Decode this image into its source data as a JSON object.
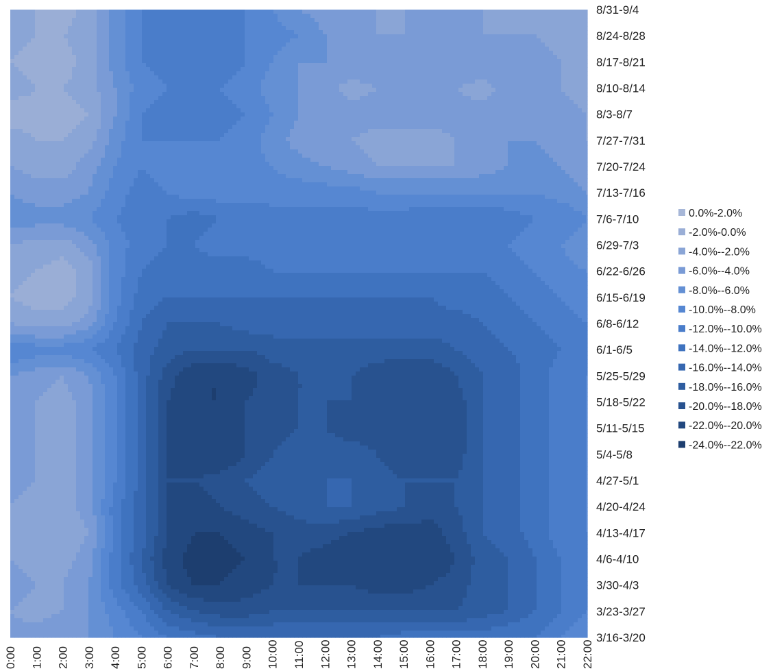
{
  "chart_data": {
    "type": "contour",
    "x_ticks": [
      "0:00",
      "1:00",
      "2:00",
      "3:00",
      "4:00",
      "5:00",
      "6:00",
      "7:00",
      "8:00",
      "9:00",
      "10:00",
      "11:00",
      "12:00",
      "13:00",
      "14:00",
      "15:00",
      "16:00",
      "17:00",
      "18:00",
      "19:00",
      "20:00",
      "21:00",
      "22:00"
    ],
    "y_ticks": [
      "3/16-3/20",
      "3/23-3/27",
      "3/30-4/3",
      "4/6-4/10",
      "4/13-4/17",
      "4/20-4/24",
      "4/27-5/1",
      "5/4-5/8",
      "5/11-5/15",
      "5/18-5/22",
      "5/25-5/29",
      "6/1-6/5",
      "6/8-6/12",
      "6/15-6/19",
      "6/22-6/26",
      "6/29-7/3",
      "7/6-7/10",
      "7/13-7/16",
      "7/20-7/24",
      "7/27-7/31",
      "8/3-8/7",
      "8/10-8/14",
      "8/17-8/21",
      "8/24-8/28",
      "8/31-9/4"
    ],
    "legend": [
      {
        "label": "0.0%-2.0%",
        "color": "#a7b7d8"
      },
      {
        "label": "-2.0%-0.0%",
        "color": "#9aaed6"
      },
      {
        "label": "-4.0%--2.0%",
        "color": "#8aa5d6"
      },
      {
        "label": "-6.0%--4.0%",
        "color": "#7a9bd6"
      },
      {
        "label": "-8.0%--6.0%",
        "color": "#6490d4"
      },
      {
        "label": "-10.0%--8.0%",
        "color": "#5687d2"
      },
      {
        "label": "-12.0%--10.0%",
        "color": "#4a7dca"
      },
      {
        "label": "-14.0%--12.0%",
        "color": "#3f73bf"
      },
      {
        "label": "-16.0%--14.0%",
        "color": "#3667b0"
      },
      {
        "label": "-18.0%--16.0%",
        "color": "#2e5da0"
      },
      {
        "label": "-20.0%--18.0%",
        "color": "#28528f"
      },
      {
        "label": "-22.0%--20.0%",
        "color": "#22487f"
      },
      {
        "label": "-24.0%--22.0%",
        "color": "#1d3e6f"
      }
    ],
    "legend_position": "right",
    "z": [
      [
        -5,
        -5,
        -6,
        -6,
        -8,
        -10,
        -12,
        -13,
        -14,
        -14,
        -14,
        -14,
        -14,
        -14,
        -14,
        -13,
        -13,
        -13,
        -13,
        -12,
        -12,
        -10,
        -8
      ],
      [
        -4,
        -3,
        -4,
        -6,
        -9,
        -12,
        -16,
        -18,
        -19,
        -19,
        -18,
        -18,
        -18,
        -18,
        -18,
        -18,
        -18,
        -18,
        -17,
        -16,
        -14,
        -12,
        -10
      ],
      [
        -5,
        -4,
        -4,
        -6,
        -11,
        -15,
        -20,
        -22,
        -22,
        -21,
        -20,
        -20,
        -20,
        -20,
        -21,
        -21,
        -20,
        -19,
        -17,
        -16,
        -14,
        -12,
        -11
      ],
      [
        -4,
        -3,
        -3,
        -5,
        -11,
        -16,
        -21,
        -23,
        -23,
        -22,
        -20,
        -20,
        -21,
        -22,
        -22,
        -22,
        -22,
        -20,
        -17,
        -16,
        -14,
        -12,
        -11
      ],
      [
        -4,
        -2,
        -2,
        -4,
        -11,
        -15,
        -20,
        -22,
        -22,
        -21,
        -20,
        -19,
        -19,
        -20,
        -21,
        -21,
        -21,
        -19,
        -16,
        -15,
        -13,
        -11,
        -10
      ],
      [
        -4,
        -3,
        -3,
        -5,
        -11,
        -15,
        -20,
        -21,
        -20,
        -19,
        -18,
        -17,
        -16,
        -16,
        -17,
        -18,
        -19,
        -18,
        -16,
        -15,
        -13,
        -11,
        -10
      ],
      [
        -5,
        -4,
        -3,
        -5,
        -10,
        -15,
        -20,
        -20,
        -19,
        -18,
        -17,
        -17,
        -16,
        -16,
        -17,
        -18,
        -18,
        -18,
        -16,
        -15,
        -13,
        -11,
        -10
      ],
      [
        -6,
        -4,
        -3,
        -5,
        -10,
        -15,
        -20,
        -22,
        -22,
        -20,
        -18,
        -17,
        -17,
        -17,
        -18,
        -20,
        -20,
        -19,
        -16,
        -15,
        -13,
        -11,
        -10
      ],
      [
        -6,
        -4,
        -3,
        -5,
        -10,
        -15,
        -20,
        -22,
        -21,
        -20,
        -19,
        -18,
        -18,
        -19,
        -19,
        -20,
        -20,
        -19,
        -16,
        -15,
        -13,
        -11,
        -10
      ],
      [
        -6,
        -4,
        -3,
        -5,
        -10,
        -15,
        -20,
        -22,
        -22,
        -20,
        -19,
        -18,
        -18,
        -18,
        -19,
        -20,
        -20,
        -19,
        -16,
        -15,
        -13,
        -11,
        -10
      ],
      [
        -6,
        -5,
        -4,
        -6,
        -10,
        -15,
        -19,
        -22,
        -22,
        -21,
        -19,
        -18,
        -18,
        -18,
        -19,
        -20,
        -20,
        -18,
        -16,
        -15,
        -13,
        -11,
        -10
      ],
      [
        -10,
        -9,
        -9,
        -10,
        -12,
        -15,
        -17,
        -18,
        -18,
        -18,
        -17,
        -17,
        -17,
        -17,
        -17,
        -17,
        -17,
        -16,
        -15,
        -14,
        -13,
        -12,
        -11
      ],
      [
        -4,
        -3,
        -3,
        -5,
        -10,
        -14,
        -16,
        -16,
        -16,
        -15,
        -15,
        -15,
        -15,
        -15,
        -15,
        -15,
        -15,
        -15,
        -14,
        -13,
        -12,
        -11,
        -10
      ],
      [
        -2,
        -1,
        -1,
        -3,
        -9,
        -13,
        -14,
        -14,
        -14,
        -14,
        -14,
        -14,
        -14,
        -14,
        -14,
        -14,
        -14,
        -13,
        -13,
        -12,
        -11,
        -10,
        -9
      ],
      [
        -3,
        -2,
        -1,
        -3,
        -9,
        -12,
        -13,
        -13,
        -13,
        -13,
        -12,
        -12,
        -12,
        -12,
        -12,
        -12,
        -12,
        -12,
        -12,
        -11,
        -10,
        -9,
        -8
      ],
      [
        -4,
        -3,
        -3,
        -5,
        -9,
        -11,
        -12,
        -12,
        -11,
        -11,
        -11,
        -11,
        -11,
        -11,
        -12,
        -10,
        -10,
        -10,
        -10,
        -10,
        -9,
        -8,
        -6
      ],
      [
        -7,
        -7,
        -7,
        -8,
        -10,
        -11,
        -12,
        -13,
        -12,
        -12,
        -11,
        -11,
        -11,
        -11,
        -11,
        -11,
        -12,
        -12,
        -12,
        -11,
        -10,
        -10,
        -8
      ],
      [
        -6,
        -5,
        -5,
        -6,
        -9,
        -11,
        -10,
        -9,
        -9,
        -9,
        -9,
        -9,
        -9,
        -9,
        -8,
        -8,
        -8,
        -8,
        -8,
        -8,
        -8,
        -7,
        -6
      ],
      [
        -4,
        -3,
        -3,
        -5,
        -8,
        -10,
        -9,
        -9,
        -9,
        -9,
        -8,
        -7,
        -6,
        -5,
        -4,
        -4,
        -4,
        -4,
        -5,
        -6,
        -7,
        -6,
        -5
      ],
      [
        -3,
        -2,
        -2,
        -3,
        -7,
        -10,
        -10,
        -10,
        -10,
        -9,
        -7,
        -5,
        -4,
        -4,
        -3,
        -3,
        -3,
        -4,
        -5,
        -6,
        -6,
        -5,
        -4
      ],
      [
        -1,
        -1,
        -1,
        -2,
        -6,
        -10,
        -11,
        -11,
        -11,
        -10,
        -8,
        -6,
        -5,
        -5,
        -5,
        -5,
        -5,
        -5,
        -5,
        -6,
        -6,
        -5,
        -4
      ],
      [
        -3,
        -2,
        -2,
        -3,
        -6,
        -9,
        -10,
        -10,
        -10,
        -9,
        -7,
        -6,
        -5,
        -3,
        -4,
        -5,
        -5,
        -4,
        -3,
        -5,
        -5,
        -4,
        -3
      ],
      [
        -2,
        -1,
        -1,
        -3,
        -7,
        -10,
        -11,
        -11,
        -11,
        -10,
        -8,
        -6,
        -6,
        -6,
        -6,
        -6,
        -6,
        -6,
        -6,
        -6,
        -5,
        -4,
        -3
      ],
      [
        -3,
        -2,
        -2,
        -3,
        -7,
        -10,
        -11,
        -11,
        -11,
        -10,
        -9,
        -8,
        -6,
        -5,
        -4,
        -4,
        -5,
        -5,
        -4,
        -4,
        -4,
        -3,
        -3
      ],
      [
        -3,
        -2,
        -1,
        -3,
        -7,
        -10,
        -11,
        -11,
        -11,
        -10,
        -8,
        -6,
        -5,
        -4,
        -4,
        -4,
        -4,
        -4,
        -4,
        -4,
        -4,
        -3,
        -3
      ]
    ]
  }
}
